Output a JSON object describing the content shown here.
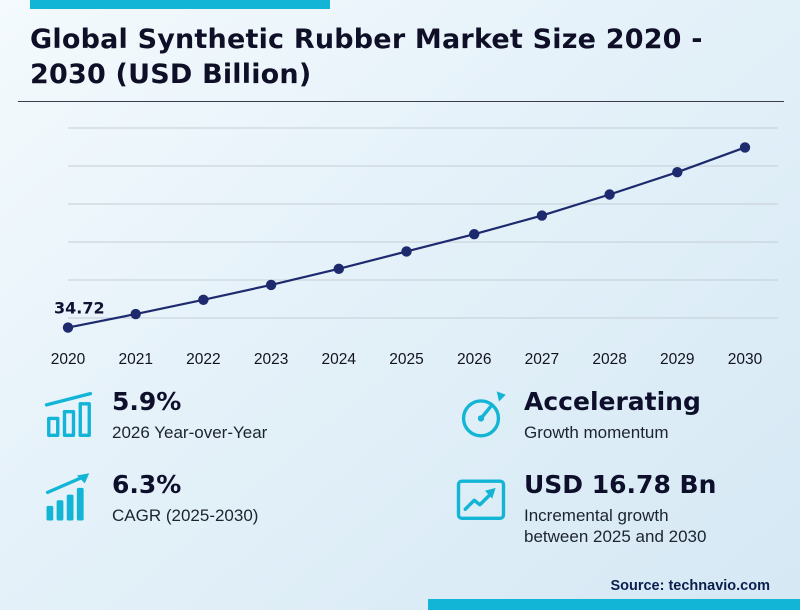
{
  "title": "Global Synthetic Rubber Market Size 2020 - 2030 (USD Billion)",
  "source": "Source: technavio.com",
  "colors": {
    "accent": "#12b5d6",
    "line": "#1e2a6e"
  },
  "chart_data": {
    "type": "line",
    "title": "Global Synthetic Rubber Market Size 2020 - 2030 (USD Billion)",
    "x": [
      2020,
      2021,
      2022,
      2023,
      2024,
      2025,
      2026,
      2027,
      2028,
      2029,
      2030
    ],
    "values": [
      34.72,
      36.9,
      39.2,
      41.6,
      44.2,
      47.0,
      49.8,
      52.8,
      56.2,
      59.8,
      63.8
    ],
    "annotations": [
      {
        "x": 2020,
        "text": "34.72"
      }
    ],
    "xlabel": "",
    "ylabel": "USD Billion",
    "ylim": [
      34,
      65
    ],
    "grid": true,
    "legend": false
  },
  "stats": [
    {
      "icon": "bar-chart-icon",
      "value": "5.9%",
      "label": "2026 Year-over-Year"
    },
    {
      "icon": "gauge-icon",
      "value": "Accelerating",
      "label": "Growth momentum"
    },
    {
      "icon": "trend-bars-icon",
      "value": "6.3%",
      "label": "CAGR (2025-2030)"
    },
    {
      "icon": "growth-chart-icon",
      "value": "USD 16.78 Bn",
      "label": "Incremental growth between 2025 and 2030"
    }
  ]
}
